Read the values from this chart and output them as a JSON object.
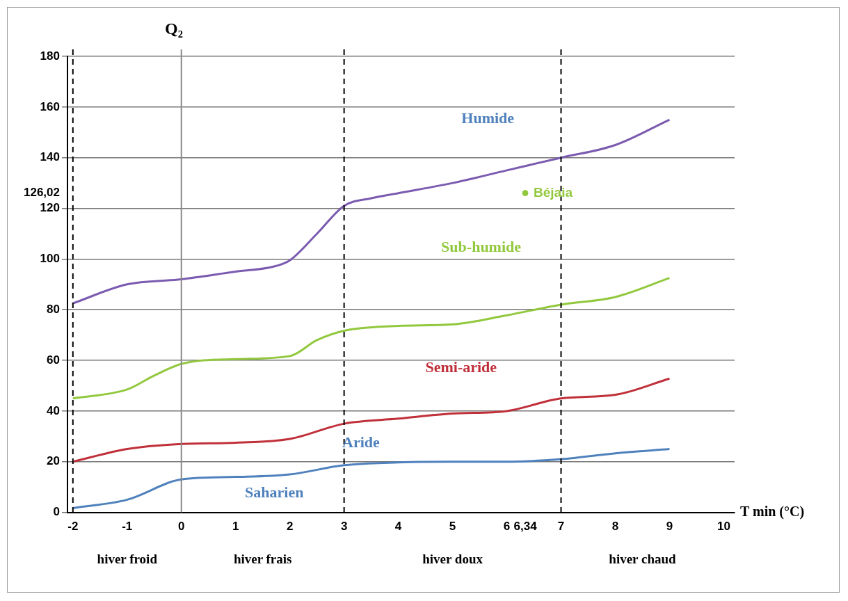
{
  "chart_data": {
    "type": "line",
    "xlabel": "T min (°C)",
    "ylabel": "Q₂",
    "xlim": [
      -2.1,
      10.2
    ],
    "ylim": [
      0,
      180
    ],
    "xticks": [
      -2,
      -1,
      0,
      1,
      2,
      3,
      4,
      5,
      6,
      {
        "value": 6.34,
        "label": "6,34"
      },
      7,
      8,
      9,
      10
    ],
    "yticks": [
      0,
      20,
      40,
      60,
      80,
      100,
      120,
      {
        "value": 126.02,
        "label": "126,02"
      },
      140,
      160,
      180
    ],
    "grid": "y",
    "legend": false,
    "marker": "none",
    "line_style": "solid",
    "series": [
      {
        "color": "#7b5bb0",
        "x": [
          -2,
          -1,
          0,
          1,
          1.7,
          2,
          2.5,
          3,
          3.5,
          4,
          5,
          6,
          7,
          8,
          9
        ],
        "values": [
          82.5,
          90,
          92,
          95,
          97,
          99.5,
          110,
          121,
          124,
          126,
          130,
          135,
          140,
          145,
          155
        ]
      },
      {
        "color": "#92c83e",
        "x": [
          -2,
          -1,
          -0.5,
          0,
          1,
          2,
          2.5,
          3,
          4,
          5,
          6,
          7,
          8,
          9
        ],
        "values": [
          45,
          48.5,
          54,
          58.6,
          60.5,
          61.7,
          68,
          71.7,
          73.6,
          74.2,
          77.8,
          82,
          85,
          92.5
        ]
      },
      {
        "color": "#c0303a",
        "x": [
          -2,
          -1,
          0,
          1,
          2,
          3,
          4,
          5,
          6,
          7,
          8,
          9
        ],
        "values": [
          20,
          25,
          27,
          27.5,
          29,
          35,
          37,
          39,
          40,
          45,
          46.4,
          52.8
        ]
      },
      {
        "color": "#4f81bd",
        "x": [
          -2,
          -1,
          0,
          1,
          2,
          3,
          4,
          5,
          6,
          7,
          8,
          9
        ],
        "values": [
          1.7,
          5,
          13,
          14,
          15,
          18.6,
          19.7,
          20,
          20,
          21,
          23.3,
          25
        ]
      },
      {
        "type": "scatter",
        "marker": "circle",
        "name": "Béjaia",
        "color": "#92c83e",
        "x": [
          6.34
        ],
        "values": [
          126.02
        ]
      }
    ],
    "ref_lines": [
      {
        "axis": "x",
        "value": -2,
        "line_style": "dashed",
        "color": "#000000"
      },
      {
        "axis": "x",
        "value": 0,
        "line_style": "solid",
        "color": "#888888"
      },
      {
        "axis": "x",
        "value": 3,
        "line_style": "dashed",
        "color": "#000000"
      },
      {
        "axis": "x",
        "value": 7,
        "line_style": "dashed",
        "color": "#000000"
      }
    ],
    "annotations": [
      "Humide",
      "Sub-humide",
      "Semi-aride",
      "Aride",
      "Saharien",
      "hiver froid",
      "hiver frais",
      "hiver doux",
      "hiver chaud"
    ]
  }
}
